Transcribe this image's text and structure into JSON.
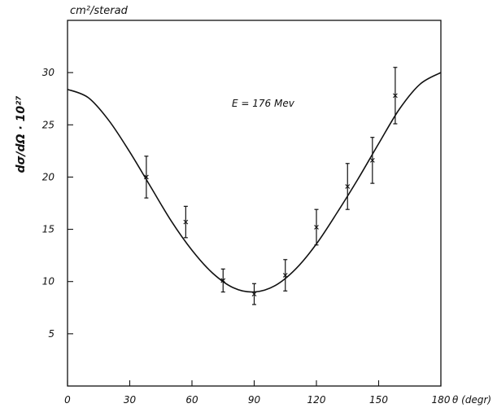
{
  "chart_data": {
    "type": "scatter",
    "title": "",
    "xlabel": "θ (degr)",
    "ylabel": "dσ/dΩ · 10²⁷",
    "y_unit": "cm²/sterad",
    "annotation": "E = 176 Mev",
    "xlim": [
      0,
      180
    ],
    "ylim": [
      0,
      35
    ],
    "x_ticks": [
      0,
      30,
      60,
      90,
      120,
      150,
      180
    ],
    "y_ticks": [
      5,
      10,
      15,
      20,
      25,
      30
    ],
    "grid": false,
    "legend": "none",
    "points": [
      {
        "x": 38,
        "y": 20.0,
        "err": 2.0
      },
      {
        "x": 57,
        "y": 15.7,
        "err": 1.5
      },
      {
        "x": 75,
        "y": 10.1,
        "err": 1.1
      },
      {
        "x": 90,
        "y": 8.8,
        "err": 1.0
      },
      {
        "x": 105,
        "y": 10.6,
        "err": 1.5
      },
      {
        "x": 120,
        "y": 15.2,
        "err": 1.7
      },
      {
        "x": 135,
        "y": 19.1,
        "err": 2.2
      },
      {
        "x": 147,
        "y": 21.6,
        "err": 2.2
      },
      {
        "x": 158,
        "y": 27.8,
        "err": 2.7
      }
    ],
    "fit_curve": {
      "x": [
        0,
        10,
        20,
        30,
        40,
        50,
        60,
        70,
        80,
        90,
        100,
        110,
        120,
        130,
        140,
        150,
        160,
        170,
        180
      ],
      "y": [
        28.4,
        27.6,
        25.4,
        22.4,
        19.1,
        15.8,
        13.0,
        10.8,
        9.4,
        9.0,
        9.6,
        11.2,
        13.6,
        16.6,
        19.8,
        23.2,
        26.5,
        28.9,
        30.0
      ]
    }
  }
}
